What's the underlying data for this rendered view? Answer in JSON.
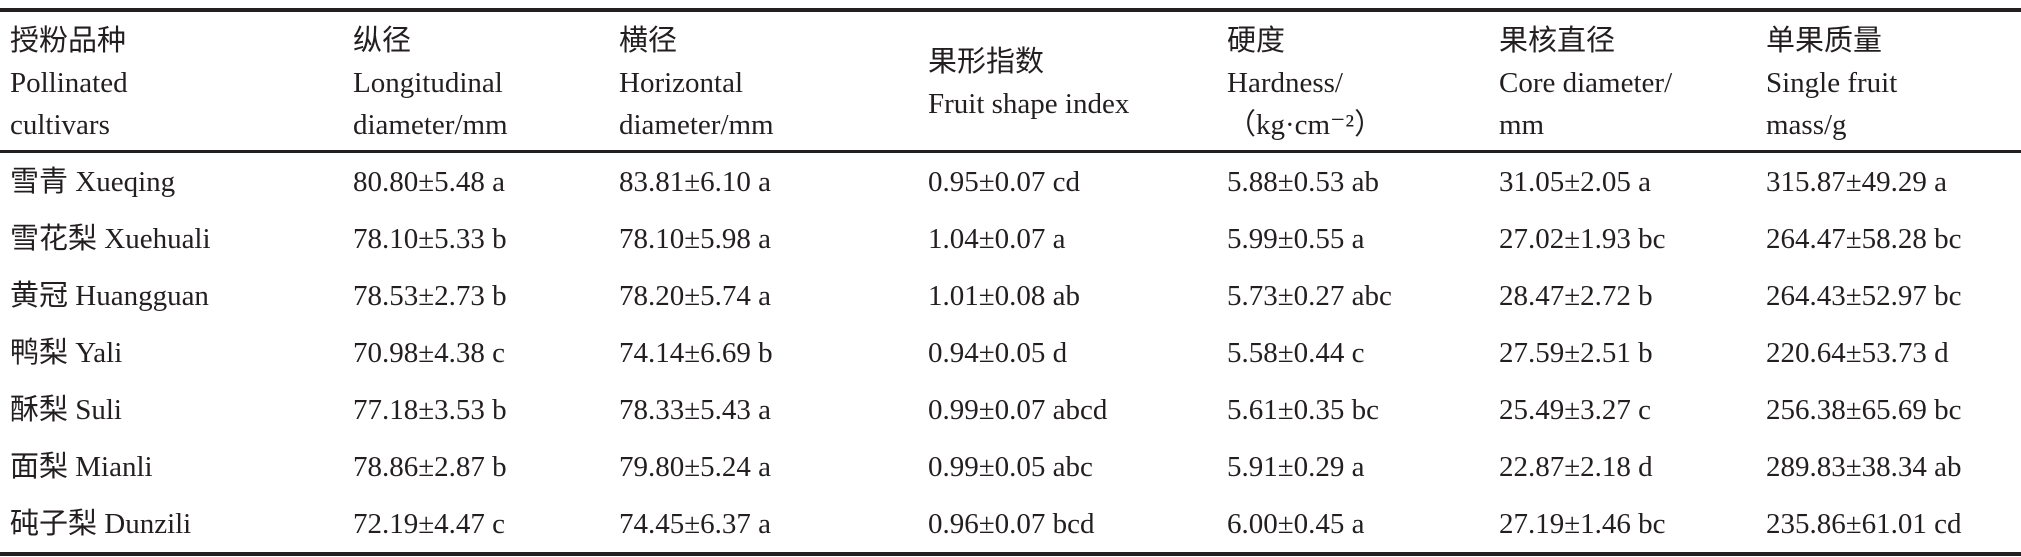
{
  "headers": [
    {
      "zh": "授粉品种",
      "en1": "Pollinated",
      "en2": "cultivars"
    },
    {
      "zh": "纵径",
      "en1": "Longitudinal",
      "en2": "diameter/mm"
    },
    {
      "zh": "横径",
      "en1": "Horizontal",
      "en2": "diameter/mm"
    },
    {
      "zh": "果形指数",
      "en1": "Fruit shape index",
      "en2": ""
    },
    {
      "zh": "硬度",
      "en1": "Hardness/",
      "en2": "（kg·cm⁻²）"
    },
    {
      "zh": "果核直径",
      "en1": "Core diameter/",
      "en2": "mm"
    },
    {
      "zh": "单果质量",
      "en1": "Single fruit",
      "en2": "mass/g"
    }
  ],
  "rows": [
    [
      "雪青 Xueqing",
      "80.80±5.48 a",
      "83.81±6.10 a",
      "0.95±0.07 cd",
      "5.88±0.53 ab",
      "31.05±2.05 a",
      "315.87±49.29 a"
    ],
    [
      "雪花梨 Xuehuali",
      "78.10±5.33 b",
      "78.10±5.98 a",
      "1.04±0.07 a",
      "5.99±0.55 a",
      "27.02±1.93 bc",
      "264.47±58.28 bc"
    ],
    [
      "黄冠 Huangguan",
      "78.53±2.73 b",
      "78.20±5.74 a",
      "1.01±0.08 ab",
      "5.73±0.27 abc",
      "28.47±2.72 b",
      "264.43±52.97 bc"
    ],
    [
      "鸭梨 Yali",
      "70.98±4.38 c",
      "74.14±6.69 b",
      "0.94±0.05 d",
      "5.58±0.44 c",
      "27.59±2.51 b",
      "220.64±53.73 d"
    ],
    [
      "酥梨 Suli",
      "77.18±3.53 b",
      "78.33±5.43 a",
      "0.99±0.07 abcd",
      "5.61±0.35 bc",
      "25.49±3.27 c",
      "256.38±65.69 bc"
    ],
    [
      "面梨 Mianli",
      "78.86±2.87 b",
      "79.80±5.24 a",
      "0.99±0.05 abc",
      "5.91±0.29 a",
      "22.87±2.18 d",
      "289.83±38.34 ab"
    ],
    [
      "砘子梨 Dunzili",
      "72.19±4.47 c",
      "74.45±6.37 a",
      "0.96±0.07 bcd",
      "6.00±0.45 a",
      "27.19±1.46 bc",
      "235.86±61.01 cd"
    ]
  ]
}
